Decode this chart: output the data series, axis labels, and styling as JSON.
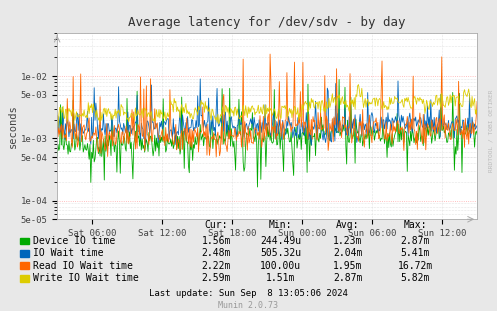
{
  "title": "Average latency for /dev/sdv - by day",
  "ylabel": "seconds",
  "bg_color": "#e8e8e8",
  "plot_bg_color": "#ffffff",
  "ylim": [
    5e-05,
    0.05
  ],
  "yticks": [
    5e-05,
    0.0001,
    0.0005,
    0.001,
    0.005,
    0.01
  ],
  "ytick_labels": [
    "5e-05",
    "1e-04",
    "5e-04",
    "1e-03",
    "5e-03",
    "1e-02"
  ],
  "xtick_labels": [
    "Sat 06:00",
    "Sat 12:00",
    "Sat 18:00",
    "Sun 00:00",
    "Sun 06:00",
    "Sun 12:00"
  ],
  "colors": {
    "device_io": "#00aa00",
    "io_wait": "#0066bb",
    "read_io": "#ff6600",
    "write_io": "#ddcc00"
  },
  "legend": [
    {
      "label": "Device IO time",
      "cur": "1.56m",
      "min": "244.49u",
      "avg": "1.23m",
      "max": "2.87m"
    },
    {
      "label": "IO Wait time",
      "cur": "2.48m",
      "min": "505.32u",
      "avg": "2.04m",
      "max": "5.41m"
    },
    {
      "label": "Read IO Wait time",
      "cur": "2.22m",
      "min": "100.00u",
      "avg": "1.95m",
      "max": "16.72m"
    },
    {
      "label": "Write IO Wait time",
      "cur": "2.59m",
      "min": "1.51m",
      "avg": "2.87m",
      "max": "5.82m"
    }
  ],
  "footer": "Last update: Sun Sep  8 13:05:06 2024",
  "munin_version": "Munin 2.0.73",
  "rrdtool_label": "RRDTOOL / TOBI OETIKER",
  "n_points": 500
}
